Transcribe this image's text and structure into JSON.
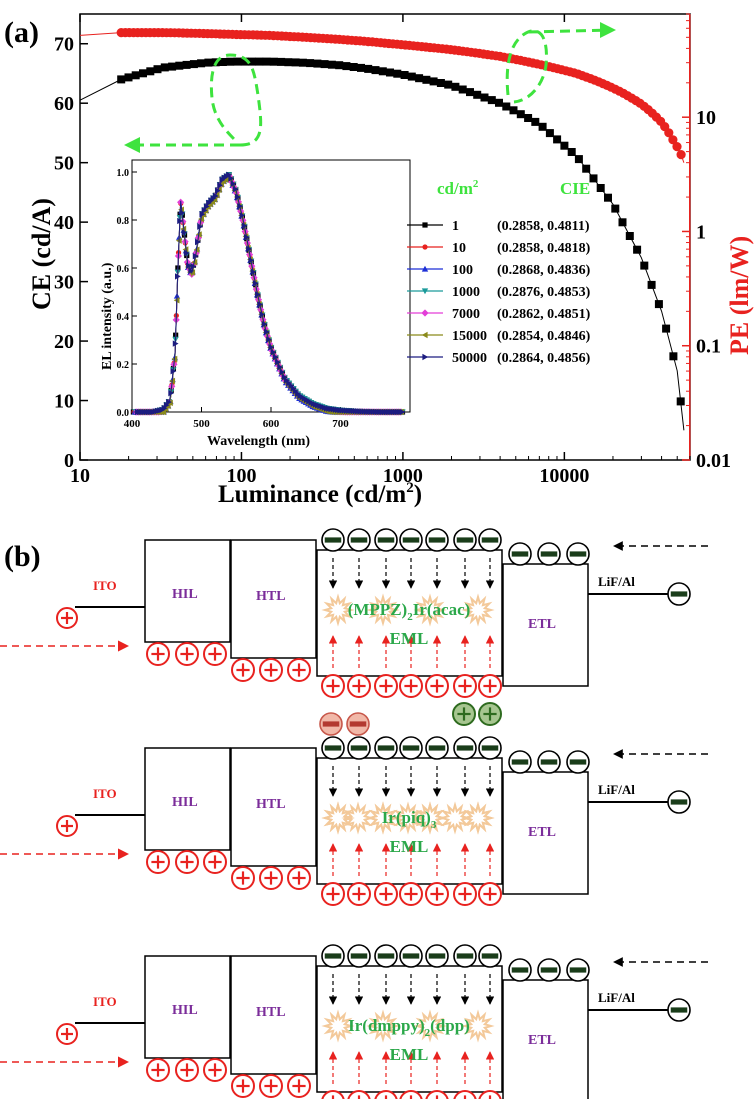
{
  "panel_a_label": "(a)",
  "panel_b_label": "(b)",
  "chart_data": {
    "type": "scatter",
    "xlabel": "Luminance (cd/m",
    "xlabel_sup": "2",
    "xlabel_end": ")",
    "ylabel_left": "CE (cd/A)",
    "ylabel_right": "PE (lm/W)",
    "x_scale": "log",
    "xlim": [
      10,
      60000
    ],
    "ylim_left": [
      0,
      75
    ],
    "ylim_right": [
      0.01,
      80
    ],
    "y_right_scale": "log",
    "x_ticks": [
      "10",
      "100",
      "1000",
      "10000"
    ],
    "y_left_ticks": [
      "0",
      "10",
      "20",
      "30",
      "40",
      "50",
      "60",
      "70"
    ],
    "y_right_ticks": [
      "0.01",
      "0.1",
      "1",
      "10"
    ],
    "ce_series": {
      "color": "#000000",
      "x": [
        10,
        18,
        33,
        60,
        90,
        150,
        250,
        400,
        600,
        1000,
        2000,
        4000,
        7000,
        12000,
        20000,
        30000,
        40000,
        50000,
        55000
      ],
      "y": [
        60.5,
        64,
        66,
        66.8,
        67,
        67,
        66.8,
        66.4,
        65.8,
        64.8,
        63,
        60,
        56.5,
        51,
        43,
        34,
        25,
        15,
        5
      ]
    },
    "pe_series": {
      "color": "#e8221f",
      "x": [
        10,
        18,
        33,
        60,
        90,
        150,
        250,
        400,
        600,
        1000,
        2000,
        4000,
        7000,
        12000,
        20000,
        30000,
        40000,
        48000,
        52000,
        55000
      ],
      "y": [
        52,
        55,
        55,
        54,
        53,
        52,
        50,
        48,
        46,
        43,
        39,
        34,
        29,
        24,
        18,
        13,
        9,
        6,
        5,
        4
      ]
    },
    "inset": {
      "xlabel": "Wavelength (nm)",
      "ylabel": "EL intensity (a.u.)",
      "xlim": [
        400,
        800
      ],
      "ylim": [
        0,
        1.05
      ],
      "x_ticks": [
        "400",
        "500",
        "600",
        "700"
      ],
      "y_ticks": [
        "0.0",
        "0.2",
        "0.4",
        "0.6",
        "0.8",
        "1.0"
      ],
      "spectrum_x": [
        400,
        430,
        445,
        455,
        462,
        466,
        470,
        474,
        480,
        486,
        492,
        500,
        510,
        520,
        530,
        540,
        550,
        560,
        570,
        580,
        590,
        600,
        620,
        640,
        660,
        680,
        700,
        730,
        760,
        790
      ],
      "spectrum_y": [
        0,
        0,
        0.01,
        0.05,
        0.25,
        0.6,
        0.88,
        0.78,
        0.62,
        0.58,
        0.66,
        0.82,
        0.87,
        0.9,
        0.97,
        0.99,
        0.92,
        0.8,
        0.65,
        0.5,
        0.37,
        0.27,
        0.14,
        0.07,
        0.035,
        0.015,
        0.007,
        0.002,
        0,
        0
      ]
    },
    "legend_header": [
      "cd/m",
      "2",
      "CIE"
    ],
    "legend": [
      {
        "lum": "1",
        "cie": "(0.2858, 0.4811)",
        "color": "#000000",
        "marker": "square"
      },
      {
        "lum": "10",
        "cie": "(0.2858, 0.4818)",
        "color": "#e8221f",
        "marker": "circle"
      },
      {
        "lum": "100",
        "cie": "(0.2868, 0.4836)",
        "color": "#1c2fd6",
        "marker": "triangle-up"
      },
      {
        "lum": "1000",
        "cie": "(0.2876, 0.4853)",
        "color": "#1a9a9a",
        "marker": "triangle-down"
      },
      {
        "lum": "7000",
        "cie": "(0.2862, 0.4851)",
        "color": "#e33fd8",
        "marker": "diamond"
      },
      {
        "lum": "15000",
        "cie": "(0.2854, 0.4846)",
        "color": "#8a8a1a",
        "marker": "triangle-left"
      },
      {
        "lum": "50000",
        "cie": "(0.2864, 0.4856)",
        "color": "#1c1c80",
        "marker": "triangle-right"
      }
    ]
  },
  "devices": [
    {
      "emitter": "(MPPZ)",
      "emitter_sub": "2",
      "emitter_tail": "Ir(acac)",
      "layer": "EML"
    },
    {
      "emitter": "Ir(piq)",
      "emitter_sub": "3",
      "emitter_tail": "",
      "layer": "EML"
    },
    {
      "emitter": "Ir(dmppy)",
      "emitter_sub": "2",
      "emitter_tail": "(dpp)",
      "layer": "EML"
    }
  ],
  "layer_labels": {
    "ito": "ITO",
    "hil": "HIL",
    "htl": "HTL",
    "etl": "ETL",
    "cathode": "LiF/Al"
  }
}
